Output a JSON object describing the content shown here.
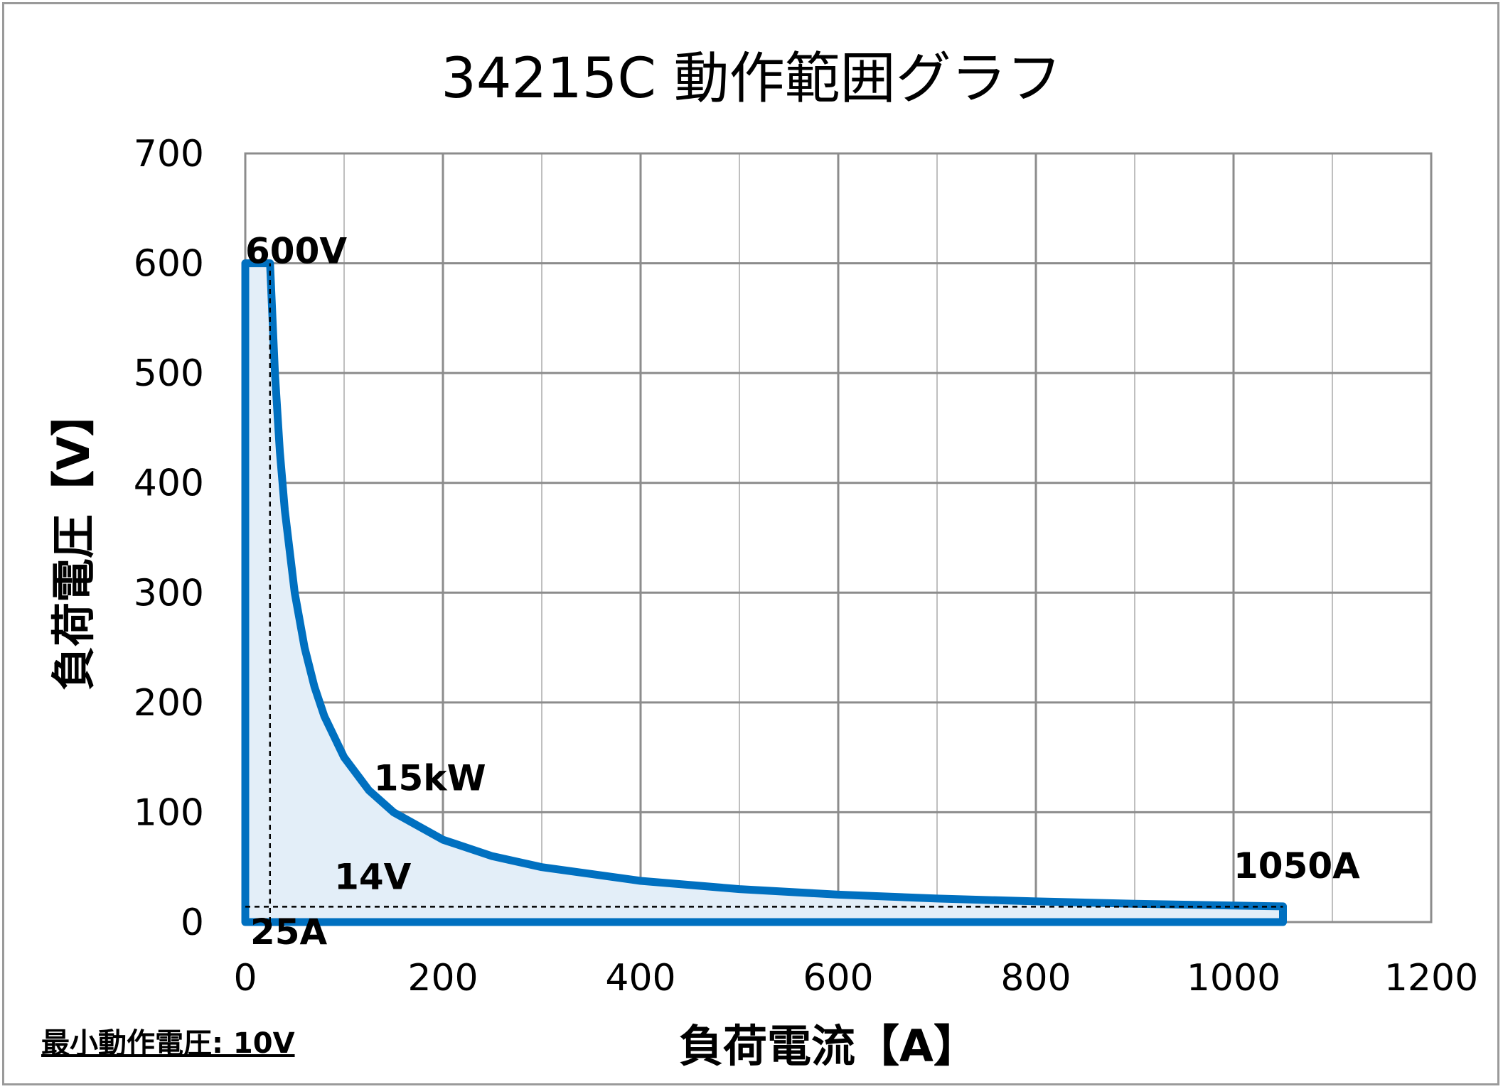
{
  "chart_data": {
    "type": "area",
    "title": "34215C  動作範囲グラフ",
    "xlabel": "負荷電流【A】",
    "ylabel": "負荷電圧【V】",
    "xlim": [
      0,
      1200
    ],
    "ylim": [
      0,
      700
    ],
    "x_ticks": [
      "0",
      "200",
      "400",
      "600",
      "800",
      "1000",
      "1200"
    ],
    "y_ticks": [
      "0",
      "100",
      "200",
      "300",
      "400",
      "500",
      "600",
      "700"
    ],
    "x_tick_values": [
      0,
      200,
      400,
      600,
      800,
      1000,
      1200
    ],
    "y_tick_values": [
      0,
      100,
      200,
      300,
      400,
      500,
      600,
      700
    ],
    "x_minor_grid": [
      100,
      300,
      500,
      700,
      900,
      1100
    ],
    "grid": true,
    "series": [
      {
        "name": "",
        "color": "#0070c0",
        "fill": "#e3eef8",
        "points": [
          [
            0,
            600
          ],
          [
            25,
            600
          ],
          [
            30,
            500
          ],
          [
            35,
            428.6
          ],
          [
            40,
            375
          ],
          [
            50,
            300
          ],
          [
            60,
            250
          ],
          [
            70,
            214.3
          ],
          [
            80,
            187.5
          ],
          [
            100,
            150
          ],
          [
            125,
            120
          ],
          [
            150,
            100
          ],
          [
            200,
            75
          ],
          [
            250,
            60
          ],
          [
            300,
            50
          ],
          [
            400,
            37.5
          ],
          [
            500,
            30
          ],
          [
            600,
            25
          ],
          [
            700,
            21.4
          ],
          [
            800,
            18.8
          ],
          [
            900,
            16.7
          ],
          [
            1000,
            15
          ],
          [
            1050,
            14.3
          ],
          [
            1050,
            0
          ],
          [
            0,
            0
          ]
        ]
      }
    ],
    "reference_lines": [
      {
        "label": "25A",
        "x": 25,
        "y_from": 0,
        "y_to": 600,
        "style": "dashed"
      },
      {
        "label": "14V",
        "y": 14,
        "x_from": 0,
        "x_to": 1050,
        "style": "dashed"
      }
    ],
    "annotations": [
      {
        "text": "600V",
        "x": 0,
        "y": 600
      },
      {
        "text": "15kW",
        "x": 130,
        "y": 120
      },
      {
        "text": "14V",
        "x": 90,
        "y": 30
      },
      {
        "text": "25A",
        "x": 5,
        "y": -20
      },
      {
        "text": "1050A",
        "x": 1000,
        "y": 40
      }
    ]
  },
  "footnote": "最小動作電圧: 10V"
}
